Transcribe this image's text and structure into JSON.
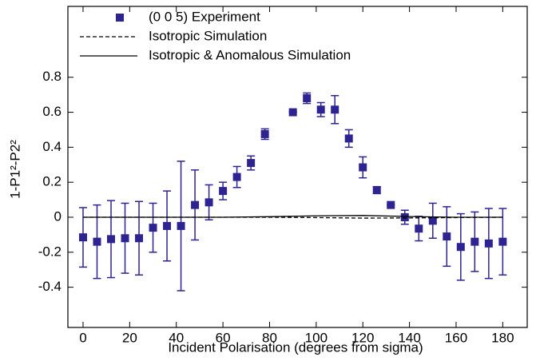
{
  "chart_data": {
    "type": "scatter",
    "xlabel": "Incident Polarisation (degrees from sigma)",
    "ylabel": "1-P1²-P2²",
    "xlim": [
      -6.5,
      190.5
    ],
    "ylim": [
      -0.63,
      1.205
    ],
    "xticks": [
      0,
      20,
      40,
      60,
      80,
      100,
      120,
      140,
      160,
      180
    ],
    "yticks": [
      -0.4,
      -0.2,
      0,
      0.2,
      0.4,
      0.6,
      0.8
    ],
    "grid": false,
    "legend": "top-left",
    "series": [
      {
        "name": "(0 0 5) Experiment",
        "color": "#2e2491",
        "style": "markers",
        "x": [
          0,
          6,
          12,
          18,
          24,
          30,
          36,
          42,
          48,
          54,
          60,
          66,
          72,
          78,
          90,
          96,
          102,
          108,
          114,
          120,
          126,
          132,
          138,
          144,
          150,
          156,
          162,
          168,
          174,
          180
        ],
        "values": [
          -0.115,
          -0.14,
          -0.125,
          -0.12,
          -0.12,
          -0.06,
          -0.05,
          -0.05,
          0.07,
          0.085,
          0.15,
          0.23,
          0.31,
          0.475,
          0.6,
          0.68,
          0.615,
          0.615,
          0.45,
          0.285,
          0.155,
          0.07,
          0,
          -0.065,
          -0.02,
          -0.11,
          -0.17,
          -0.14,
          -0.15,
          -0.14
        ],
        "errors": [
          0.17,
          0.21,
          0.22,
          0.2,
          0.21,
          0.14,
          0.2,
          0.37,
          0.2,
          0.1,
          0.05,
          0.06,
          0.04,
          0.03,
          0,
          0.03,
          0.04,
          0.08,
          0.05,
          0.06,
          0.02,
          0,
          0.04,
          0.07,
          0.1,
          0.17,
          0.19,
          0.17,
          0.2,
          0.19
        ]
      },
      {
        "name": "Isotropic Simulation",
        "color": "#000000",
        "style": "dashed",
        "x": [
          0,
          20,
          40,
          60,
          80,
          100,
          120,
          140,
          160,
          180
        ],
        "values": [
          0,
          0,
          0,
          0,
          0,
          -0.002,
          -0.005,
          -0.004,
          -0.002,
          0
        ]
      },
      {
        "name": "Isotropic & Anomalous Simulation",
        "color": "#000000",
        "style": "solid",
        "x": [
          0,
          20,
          40,
          60,
          80,
          100,
          120,
          140,
          160,
          180
        ],
        "values": [
          0,
          0,
          0,
          0,
          0.003,
          0.008,
          0.01,
          0.004,
          0,
          0
        ]
      }
    ]
  }
}
